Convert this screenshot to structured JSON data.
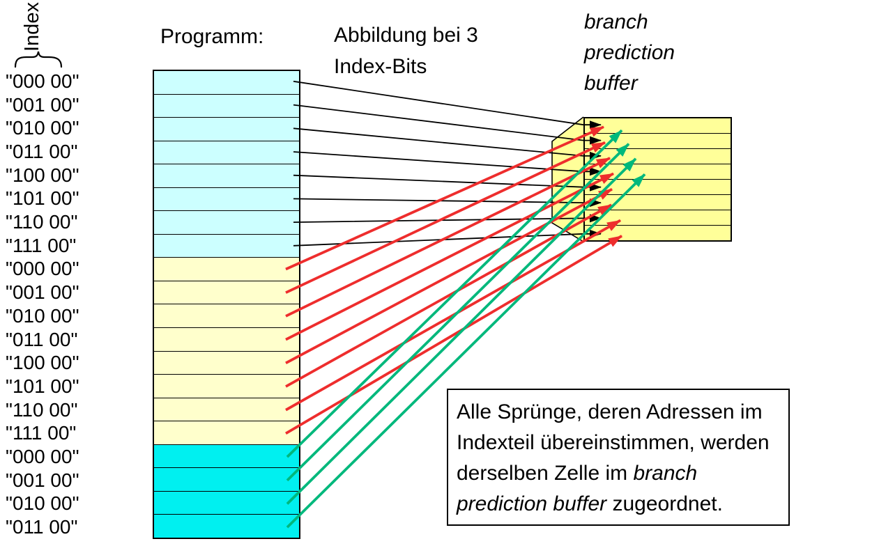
{
  "header": {
    "index_label": "Index",
    "program_title": "Programm:",
    "mapping_title": "Abbildung bei 3 Index-Bits",
    "buffer_title": "branch prediction buffer"
  },
  "colors": {
    "section_a": "#CCFFFF",
    "section_b": "#FFFFCC",
    "section_c": "#00F0F0",
    "buffer_fill": "#FFFF99",
    "arrow_black": "#000000",
    "arrow_red": "#EE2D2D",
    "arrow_green": "#00B87C",
    "border": "#000000"
  },
  "program": {
    "rows": [
      {
        "label": "\"000 00\"",
        "section": "a",
        "target": 0
      },
      {
        "label": "\"001 00\"",
        "section": "a",
        "target": 1
      },
      {
        "label": "\"010 00\"",
        "section": "a",
        "target": 2
      },
      {
        "label": "\"011 00\"",
        "section": "a",
        "target": 3
      },
      {
        "label": "\"100 00\"",
        "section": "a",
        "target": 4
      },
      {
        "label": "\"101 00\"",
        "section": "a",
        "target": 5
      },
      {
        "label": "\"110 00\"",
        "section": "a",
        "target": 6
      },
      {
        "label": "\"111 00\"",
        "section": "a",
        "target": 7
      },
      {
        "label": "\"000 00\"",
        "section": "b",
        "target": 0
      },
      {
        "label": "\"001 00\"",
        "section": "b",
        "target": 1
      },
      {
        "label": "\"010 00\"",
        "section": "b",
        "target": 2
      },
      {
        "label": "\"011 00\"",
        "section": "b",
        "target": 3
      },
      {
        "label": "\"100 00\"",
        "section": "b",
        "target": 4
      },
      {
        "label": "\"101 00\"",
        "section": "b",
        "target": 5
      },
      {
        "label": "\"110 00\"",
        "section": "b",
        "target": 6
      },
      {
        "label": "\"111 00\"",
        "section": "b",
        "target": 7
      },
      {
        "label": "\"000 00\"",
        "section": "c",
        "target": 0
      },
      {
        "label": "\"001 00\"",
        "section": "c",
        "target": 1
      },
      {
        "label": "\"010 00\"",
        "section": "c",
        "target": 2
      },
      {
        "label": "\"011 00\"",
        "section": "c",
        "target": 3
      }
    ]
  },
  "buffer": {
    "row_count": 8
  },
  "note": {
    "before": "Alle Sprünge, deren Adressen im Indexteil übereinstimmen, werden derselben Zelle im ",
    "italic": "branch prediction buffer",
    "after": " zugeordnet."
  }
}
